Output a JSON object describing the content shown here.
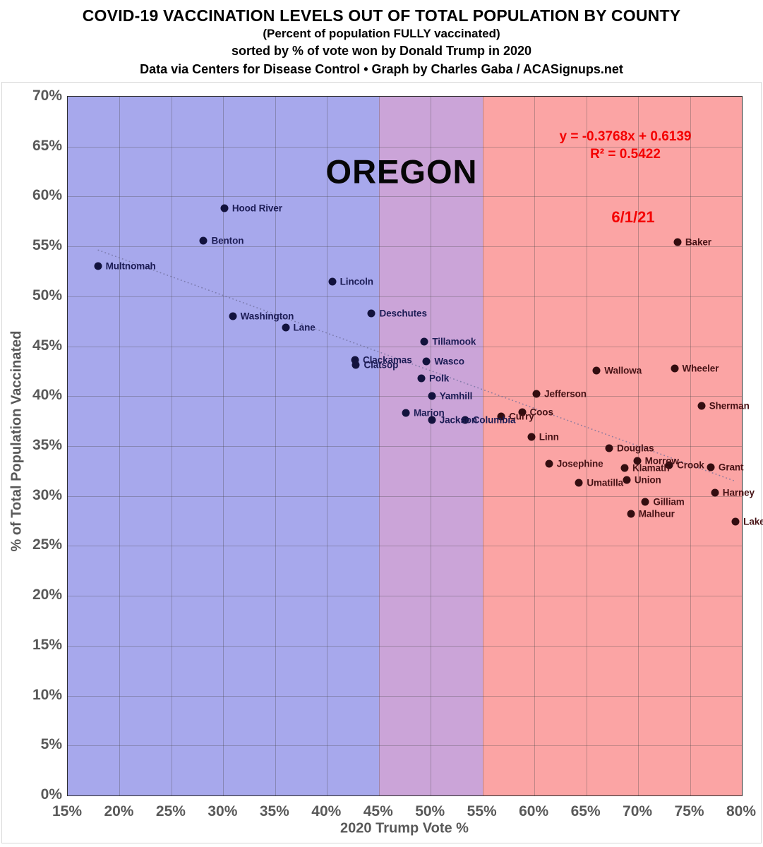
{
  "header": {
    "title": "COVID-19 VACCINATION LEVELS OUT OF TOTAL POPULATION BY COUNTY",
    "subtitle_1": "(Percent of population FULLY vaccinated)",
    "subtitle_2": "sorted by % of vote won by Donald Trump in 2020",
    "subtitle_3": "Data via Centers for Disease Control • Graph by Charles Gaba / ACASignups.net"
  },
  "chart_data": {
    "type": "scatter",
    "state_label": "OREGON",
    "date_label": "6/1/21",
    "xlabel": "2020 Trump Vote %",
    "ylabel": "% of Total Population Vaccinated",
    "xlim": [
      15,
      80
    ],
    "ylim": [
      0,
      70
    ],
    "grid": true,
    "x_ticks": [
      "15%",
      "20%",
      "25%",
      "30%",
      "35%",
      "40%",
      "45%",
      "50%",
      "55%",
      "60%",
      "65%",
      "70%",
      "75%",
      "80%"
    ],
    "y_ticks": [
      "0%",
      "5%",
      "10%",
      "15%",
      "20%",
      "25%",
      "30%",
      "35%",
      "40%",
      "45%",
      "50%",
      "55%",
      "60%",
      "65%",
      "70%"
    ],
    "regions": [
      {
        "name": "blue",
        "from": 15,
        "to": 45,
        "color": "#a7a8ec"
      },
      {
        "name": "purple",
        "from": 45,
        "to": 55,
        "color": "#cba4d8"
      },
      {
        "name": "red",
        "from": 55,
        "to": 80,
        "color": "#fba4a4"
      }
    ],
    "point_styles": {
      "blue": {
        "dot": "#12123d",
        "label": "#1c1c55"
      },
      "purple": {
        "dot": "#12123d",
        "label": "#1c1c55"
      },
      "red": {
        "dot": "#330d10",
        "label": "#471316"
      }
    },
    "trendline": {
      "equation_label": "y = -0.3768x + 0.6139",
      "r_squared_label": "R² = 0.5422",
      "slope": -0.3768,
      "intercept": 0.6139,
      "x_start": 17.9,
      "x_end": 79.4,
      "color": "#6f6f9d"
    },
    "points": [
      {
        "county": "Multnomah",
        "trump_vote_pct": 17.9,
        "vaccinated_pct": 53.0,
        "region": "blue"
      },
      {
        "county": "Benton",
        "trump_vote_pct": 28.1,
        "vaccinated_pct": 55.6,
        "region": "blue"
      },
      {
        "county": "Hood River",
        "trump_vote_pct": 30.1,
        "vaccinated_pct": 58.8,
        "region": "blue"
      },
      {
        "county": "Washington",
        "trump_vote_pct": 30.9,
        "vaccinated_pct": 48.0,
        "region": "blue"
      },
      {
        "county": "Lane",
        "trump_vote_pct": 36.0,
        "vaccinated_pct": 46.9,
        "region": "blue"
      },
      {
        "county": "Lincoln",
        "trump_vote_pct": 40.5,
        "vaccinated_pct": 51.5,
        "region": "blue"
      },
      {
        "county": "Clackamas",
        "trump_vote_pct": 42.7,
        "vaccinated_pct": 43.6,
        "region": "blue"
      },
      {
        "county": "Clatsop",
        "trump_vote_pct": 42.8,
        "vaccinated_pct": 43.1,
        "region": "blue"
      },
      {
        "county": "Deschutes",
        "trump_vote_pct": 44.3,
        "vaccinated_pct": 48.3,
        "region": "blue"
      },
      {
        "county": "Marion",
        "trump_vote_pct": 47.6,
        "vaccinated_pct": 38.3,
        "region": "purple"
      },
      {
        "county": "Polk",
        "trump_vote_pct": 49.1,
        "vaccinated_pct": 41.8,
        "region": "purple"
      },
      {
        "county": "Tillamook",
        "trump_vote_pct": 49.4,
        "vaccinated_pct": 45.5,
        "region": "purple"
      },
      {
        "county": "Wasco",
        "trump_vote_pct": 49.6,
        "vaccinated_pct": 43.5,
        "region": "purple"
      },
      {
        "county": "Yamhill",
        "trump_vote_pct": 50.1,
        "vaccinated_pct": 40.0,
        "region": "purple"
      },
      {
        "county": "Jackson",
        "trump_vote_pct": 50.1,
        "vaccinated_pct": 37.6,
        "region": "purple"
      },
      {
        "county": "Columbia",
        "trump_vote_pct": 53.3,
        "vaccinated_pct": 37.6,
        "region": "purple"
      },
      {
        "county": "Curry",
        "trump_vote_pct": 56.8,
        "vaccinated_pct": 38.0,
        "region": "red"
      },
      {
        "county": "Coos",
        "trump_vote_pct": 58.8,
        "vaccinated_pct": 38.4,
        "region": "red"
      },
      {
        "county": "Linn",
        "trump_vote_pct": 59.7,
        "vaccinated_pct": 35.9,
        "region": "red"
      },
      {
        "county": "Jefferson",
        "trump_vote_pct": 60.2,
        "vaccinated_pct": 40.2,
        "region": "red"
      },
      {
        "county": "Josephine",
        "trump_vote_pct": 61.4,
        "vaccinated_pct": 33.2,
        "region": "red"
      },
      {
        "county": "Umatilla",
        "trump_vote_pct": 64.3,
        "vaccinated_pct": 31.3,
        "region": "red"
      },
      {
        "county": "Wallowa",
        "trump_vote_pct": 66.0,
        "vaccinated_pct": 42.6,
        "region": "red"
      },
      {
        "county": "Douglas",
        "trump_vote_pct": 67.2,
        "vaccinated_pct": 34.8,
        "region": "red"
      },
      {
        "county": "Klamath",
        "trump_vote_pct": 68.7,
        "vaccinated_pct": 32.8,
        "region": "red"
      },
      {
        "county": "Union",
        "trump_vote_pct": 68.9,
        "vaccinated_pct": 31.6,
        "region": "red"
      },
      {
        "county": "Malheur",
        "trump_vote_pct": 69.3,
        "vaccinated_pct": 28.2,
        "region": "red"
      },
      {
        "county": "Morrow",
        "trump_vote_pct": 69.9,
        "vaccinated_pct": 33.5,
        "region": "red"
      },
      {
        "county": "Gilliam",
        "trump_vote_pct": 70.7,
        "vaccinated_pct": 29.4,
        "region": "red"
      },
      {
        "county": "Crook",
        "trump_vote_pct": 73.0,
        "vaccinated_pct": 33.1,
        "region": "red"
      },
      {
        "county": "Wheeler",
        "trump_vote_pct": 73.5,
        "vaccinated_pct": 42.8,
        "region": "red"
      },
      {
        "county": "Baker",
        "trump_vote_pct": 73.8,
        "vaccinated_pct": 55.4,
        "region": "red"
      },
      {
        "county": "Sherman",
        "trump_vote_pct": 76.1,
        "vaccinated_pct": 39.0,
        "region": "red"
      },
      {
        "county": "Grant",
        "trump_vote_pct": 77.0,
        "vaccinated_pct": 32.9,
        "region": "red"
      },
      {
        "county": "Harney",
        "trump_vote_pct": 77.4,
        "vaccinated_pct": 30.3,
        "region": "red"
      },
      {
        "county": "Lake",
        "trump_vote_pct": 79.4,
        "vaccinated_pct": 27.4,
        "region": "red"
      }
    ]
  }
}
